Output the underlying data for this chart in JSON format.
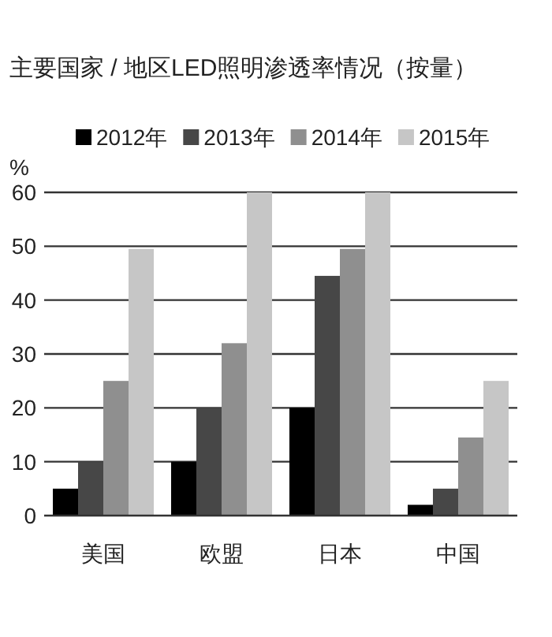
{
  "chart_data": {
    "type": "bar",
    "title": "主要国家 / 地区LED照明渗透率情况（按量）",
    "ylabel": "%",
    "categories": [
      "美国",
      "欧盟",
      "日本",
      "中国"
    ],
    "series": [
      {
        "name": "2012年",
        "color": "#000000",
        "values": [
          5,
          10,
          20,
          2
        ]
      },
      {
        "name": "2013年",
        "color": "#474747",
        "values": [
          10,
          20,
          44.5,
          5
        ]
      },
      {
        "name": "2014年",
        "color": "#8f8f8f",
        "values": [
          25,
          32,
          49.5,
          14.5
        ]
      },
      {
        "name": "2015年",
        "color": "#c6c6c6",
        "values": [
          49.5,
          60,
          60,
          25
        ]
      }
    ],
    "ylim": [
      0,
      60
    ],
    "yticks": [
      0,
      10,
      20,
      30,
      40,
      50,
      60
    ],
    "grid": "y",
    "legend": "top"
  }
}
